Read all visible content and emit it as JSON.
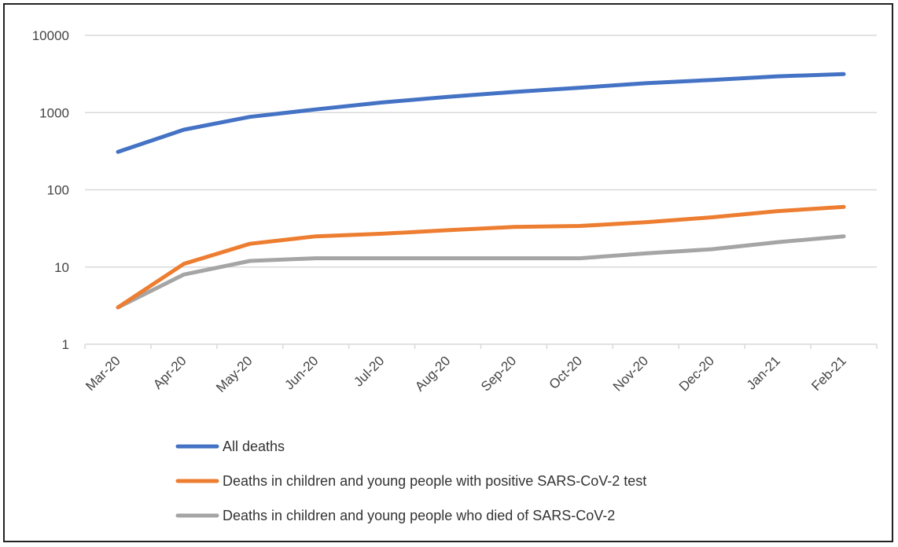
{
  "chart_data": {
    "type": "line",
    "title": "",
    "xlabel": "",
    "ylabel": "",
    "yscale": "log",
    "ylim": [
      1,
      10000
    ],
    "yticks": [
      "1",
      "10",
      "100",
      "1000",
      "10000"
    ],
    "grid": "horizontal",
    "legend_position": "bottom-left",
    "categories": [
      "Mar-20",
      "Apr-20",
      "May-20",
      "Jun-20",
      "Jul-20",
      "Aug-20",
      "Sep-20",
      "Oct-20",
      "Nov-20",
      "Dec-20",
      "Jan-21",
      "Feb-21"
    ],
    "series": [
      {
        "name": "All deaths",
        "color": "#4472C4",
        "values": [
          310,
          600,
          880,
          1100,
          1350,
          1600,
          1850,
          2100,
          2400,
          2650,
          2950,
          3150
        ]
      },
      {
        "name": "Deaths in children and young people with positive SARS-CoV-2 test",
        "color": "#ED7D31",
        "values": [
          3,
          11,
          20,
          25,
          27,
          30,
          33,
          34,
          38,
          44,
          53,
          60
        ]
      },
      {
        "name": "Deaths in children and young people who died of SARS-CoV-2",
        "color": "#A5A5A5",
        "values": [
          3,
          8,
          12,
          13,
          13,
          13,
          13,
          13,
          15,
          17,
          21,
          25
        ]
      }
    ]
  }
}
